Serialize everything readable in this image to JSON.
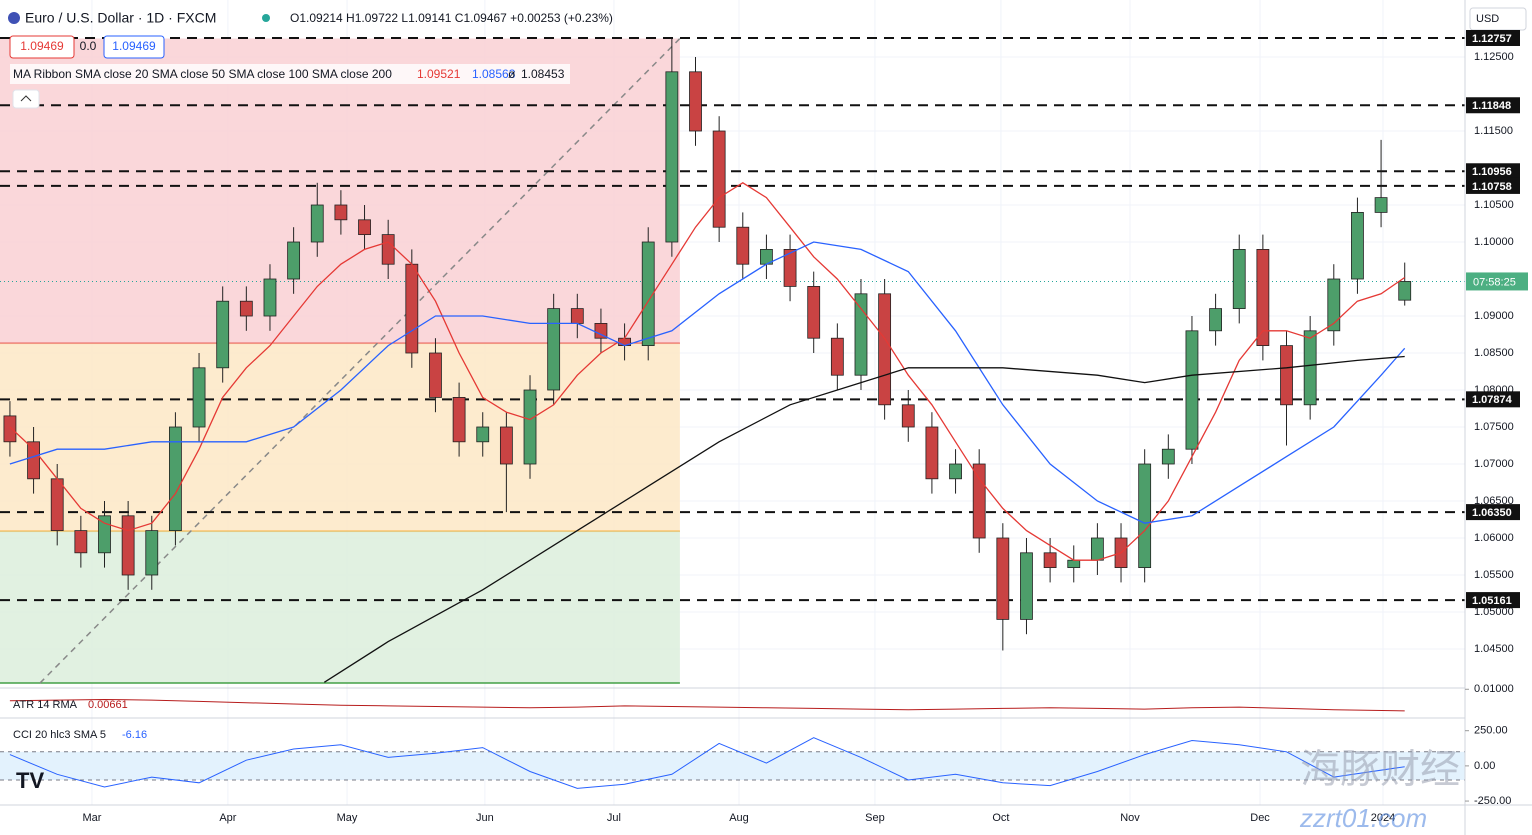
{
  "header": {
    "symbol": "Euro / U.S. Dollar · 1D · FXCM",
    "ohlc": "O1.09214 H1.09722 L1.09141 C1.09467 +0.00253 (+0.23%)",
    "bid": "1.09469",
    "spread": "0.0",
    "ask": "1.09469",
    "currency": "USD",
    "watermark": "海豚财经",
    "watermark_url": "zzrt01.com"
  },
  "chart_data": [
    {
      "type": "candlestick",
      "legend": "MA Ribbon SMA close 20 SMA close 50 SMA close 100 SMA close 200",
      "legend_hidden": "ø",
      "x": [
        0,
        1,
        2,
        3,
        4,
        5,
        6,
        7,
        8,
        9,
        10,
        11,
        12,
        13,
        14,
        15,
        16,
        17,
        18,
        19,
        20,
        21,
        22,
        23,
        24,
        25,
        26,
        27,
        28,
        29,
        30,
        31,
        32,
        33,
        34,
        35,
        36,
        37,
        38,
        39,
        40,
        41,
        42,
        43,
        44,
        45,
        46,
        47,
        48,
        49,
        50,
        51,
        52,
        53,
        54,
        55,
        56,
        57,
        58,
        59
      ],
      "open": [
        1.0765,
        1.073,
        1.068,
        1.061,
        1.058,
        1.063,
        1.055,
        1.061,
        1.075,
        1.083,
        1.092,
        1.09,
        1.095,
        1.1,
        1.105,
        1.103,
        1.101,
        1.097,
        1.085,
        1.079,
        1.073,
        1.075,
        1.07,
        1.08,
        1.091,
        1.089,
        1.087,
        1.086,
        1.1,
        1.123,
        1.115,
        1.102,
        1.097,
        1.099,
        1.094,
        1.087,
        1.082,
        1.093,
        1.078,
        1.075,
        1.068,
        1.07,
        1.06,
        1.049,
        1.058,
        1.056,
        1.057,
        1.06,
        1.056,
        1.07,
        1.072,
        1.088,
        1.091,
        1.099,
        1.086,
        1.078,
        1.088,
        1.095,
        1.104,
        1.09214
      ],
      "high": [
        1.0785,
        1.075,
        1.07,
        1.063,
        1.065,
        1.065,
        1.063,
        1.077,
        1.085,
        1.094,
        1.094,
        1.097,
        1.102,
        1.108,
        1.107,
        1.105,
        1.103,
        1.099,
        1.087,
        1.081,
        1.077,
        1.077,
        1.082,
        1.093,
        1.093,
        1.091,
        1.089,
        1.102,
        1.1275,
        1.125,
        1.117,
        1.104,
        1.101,
        1.101,
        1.096,
        1.089,
        1.095,
        1.095,
        1.08,
        1.077,
        1.072,
        1.072,
        1.062,
        1.06,
        1.06,
        1.059,
        1.062,
        1.062,
        1.072,
        1.074,
        1.09,
        1.093,
        1.101,
        1.101,
        1.088,
        1.09,
        1.097,
        1.106,
        1.1138,
        1.09722
      ],
      "low": [
        1.071,
        1.066,
        1.059,
        1.056,
        1.056,
        1.053,
        1.053,
        1.059,
        1.073,
        1.081,
        1.088,
        1.088,
        1.093,
        1.098,
        1.101,
        1.099,
        1.095,
        1.083,
        1.077,
        1.071,
        1.071,
        1.0635,
        1.068,
        1.078,
        1.087,
        1.085,
        1.084,
        1.084,
        1.098,
        1.113,
        1.1,
        1.095,
        1.095,
        1.092,
        1.085,
        1.08,
        1.08,
        1.076,
        1.073,
        1.066,
        1.066,
        1.058,
        1.0448,
        1.047,
        1.054,
        1.054,
        1.055,
        1.054,
        1.054,
        1.068,
        1.07,
        1.086,
        1.089,
        1.084,
        1.0725,
        1.076,
        1.086,
        1.093,
        1.102,
        1.09141
      ],
      "close": [
        1.073,
        1.068,
        1.061,
        1.058,
        1.063,
        1.055,
        1.061,
        1.075,
        1.083,
        1.092,
        1.09,
        1.095,
        1.1,
        1.105,
        1.103,
        1.101,
        1.097,
        1.085,
        1.079,
        1.073,
        1.075,
        1.07,
        1.08,
        1.091,
        1.089,
        1.087,
        1.086,
        1.1,
        1.123,
        1.115,
        1.102,
        1.097,
        1.099,
        1.094,
        1.087,
        1.082,
        1.093,
        1.078,
        1.075,
        1.068,
        1.07,
        1.06,
        1.049,
        1.058,
        1.056,
        1.057,
        1.06,
        1.056,
        1.07,
        1.072,
        1.088,
        1.091,
        1.099,
        1.086,
        1.078,
        1.088,
        1.095,
        1.104,
        1.106,
        1.09467
      ],
      "up_color": "#4d9e6a",
      "down_color": "#c94343",
      "xlim": [
        -0.42,
        61.55
      ],
      "xticks": [
        {
          "value": 3.47,
          "label": "Mar"
        },
        {
          "value": 9.22,
          "label": "Apr"
        },
        {
          "value": 14.26,
          "label": "May"
        },
        {
          "value": 20.09,
          "label": "Jun"
        },
        {
          "value": 25.55,
          "label": "Jul"
        },
        {
          "value": 30.84,
          "label": "Aug"
        },
        {
          "value": 36.59,
          "label": "Sep"
        },
        {
          "value": 41.92,
          "label": "Oct"
        },
        {
          "value": 47.38,
          "label": "Nov"
        },
        {
          "value": 52.88,
          "label": "Dec"
        },
        {
          "value": 58.08,
          "label": "2024"
        }
      ],
      "ylim": [
        1.03973,
        1.12865
      ],
      "yticks": [
        {
          "value": 1.125,
          "label": "1.12500"
        },
        {
          "value": 1.115,
          "label": "1.11500"
        },
        {
          "value": 1.105,
          "label": "1.10500"
        },
        {
          "value": 1.1,
          "label": "1.10000"
        },
        {
          "value": 1.09,
          "label": "1.09000"
        },
        {
          "value": 1.085,
          "label": "1.08500"
        },
        {
          "value": 1.08,
          "label": "1.08000"
        },
        {
          "value": 1.075,
          "label": "1.07500"
        },
        {
          "value": 1.07,
          "label": "1.07000"
        },
        {
          "value": 1.065,
          "label": "1.06500"
        },
        {
          "value": 1.06,
          "label": "1.06000"
        },
        {
          "value": 1.055,
          "label": "1.05500"
        },
        {
          "value": 1.05,
          "label": "1.05000"
        },
        {
          "value": 1.045,
          "label": "1.04500"
        }
      ],
      "grid": true,
      "zones": [
        {
          "low": 1.0863,
          "high": 1.1275,
          "fill": "#f9d0d3",
          "line": "#e53935"
        },
        {
          "low": 1.0609,
          "high": 1.0863,
          "fill": "#fde7c6",
          "line": "#f39c12"
        },
        {
          "low": 1.0404,
          "high": 1.0609,
          "fill": "#dcefdc",
          "line": "#43a047"
        }
      ],
      "zone_x_end": 28.34,
      "trendline": {
        "x": [
          1.27,
          28.34
        ],
        "values": [
          1.0404,
          1.1275
        ],
        "color": "#888888"
      },
      "levels": [
        1.12757,
        1.11848,
        1.10956,
        1.10758,
        1.07874,
        {
          "value": 1.0635,
          "label": "1.06350"
        },
        1.05161
      ],
      "last_price": 1.09467,
      "countdown": "07:58:25",
      "series": [
        {
          "color": "#e53935",
          "last": 1.09521,
          "x": [
            0,
            1,
            2,
            3,
            4,
            5,
            6,
            7,
            8,
            9,
            10,
            11,
            12,
            13,
            14,
            15,
            16,
            17,
            18,
            19,
            20,
            21,
            22,
            23,
            24,
            25,
            26,
            27,
            28,
            29,
            30,
            31,
            32,
            33,
            34,
            35,
            36,
            37,
            38,
            39,
            40,
            41,
            42,
            43,
            44,
            45,
            46,
            47,
            48,
            49,
            50,
            51,
            52,
            53,
            54,
            55,
            56,
            57,
            58,
            59
          ],
          "values": [
            1.075,
            1.072,
            1.068,
            1.064,
            1.062,
            1.061,
            1.062,
            1.066,
            1.072,
            1.079,
            1.083,
            1.086,
            1.09,
            1.094,
            1.097,
            1.099,
            1.1,
            1.097,
            1.092,
            1.085,
            1.079,
            1.077,
            1.076,
            1.078,
            1.082,
            1.085,
            1.087,
            1.092,
            1.097,
            1.102,
            1.106,
            1.108,
            1.106,
            1.102,
            1.098,
            1.095,
            1.091,
            1.087,
            1.082,
            1.078,
            1.073,
            1.068,
            1.064,
            1.061,
            1.059,
            1.057,
            1.057,
            1.058,
            1.061,
            1.065,
            1.071,
            1.077,
            1.084,
            1.088,
            1.088,
            1.087,
            1.089,
            1.092,
            1.093,
            1.09521
          ]
        },
        {
          "color": "#2962ff",
          "last": 1.08563,
          "x": [
            0,
            2,
            4,
            6,
            8,
            10,
            12,
            14,
            16,
            18,
            20,
            22,
            24,
            26,
            28,
            30,
            32,
            34,
            36,
            38,
            40,
            42,
            44,
            46,
            48,
            50,
            52,
            54,
            56,
            58,
            59
          ],
          "values": [
            1.07,
            1.072,
            1.072,
            1.073,
            1.073,
            1.073,
            1.075,
            1.08,
            1.086,
            1.09,
            1.09,
            1.089,
            1.089,
            1.086,
            1.088,
            1.093,
            1.097,
            1.1,
            1.099,
            1.096,
            1.088,
            1.078,
            1.07,
            1.065,
            1.062,
            1.063,
            1.067,
            1.071,
            1.075,
            1.082,
            1.08563
          ]
        },
        {
          "color": "#111111",
          "last": 1.08453,
          "x": [
            13.3,
            16,
            20,
            24,
            27,
            30,
            33,
            36,
            38,
            42,
            46,
            48,
            50,
            54,
            57,
            59
          ],
          "values": [
            1.0405,
            1.046,
            1.053,
            1.061,
            1.067,
            1.073,
            1.078,
            1.081,
            1.083,
            1.083,
            1.082,
            1.081,
            1.082,
            1.083,
            1.084,
            1.08453
          ]
        }
      ]
    },
    {
      "type": "line",
      "label": "ATR 14 RMA",
      "last": 0.00661,
      "color": "#b71c1c",
      "ylim": [
        0.0055,
        0.0102
      ],
      "yticks": [
        {
          "value": 0.01,
          "label": "0.01000"
        }
      ],
      "x": [
        0,
        2,
        4,
        6,
        8,
        10,
        12,
        14,
        16,
        18,
        20,
        22,
        24,
        26,
        28,
        30,
        32,
        34,
        36,
        38,
        40,
        42,
        44,
        46,
        48,
        50,
        52,
        54,
        56,
        59
      ],
      "values": [
        0.0082,
        0.0083,
        0.0084,
        0.0083,
        0.0081,
        0.0079,
        0.0077,
        0.0075,
        0.0074,
        0.0073,
        0.0072,
        0.0071,
        0.0072,
        0.0074,
        0.0073,
        0.0072,
        0.0071,
        0.007,
        0.0069,
        0.0068,
        0.0069,
        0.007,
        0.0071,
        0.007,
        0.0069,
        0.0071,
        0.0072,
        0.007,
        0.0068,
        0.00661
      ]
    },
    {
      "type": "line",
      "label": "CCI 20 hlc3 SMA 5",
      "last": -6.16,
      "color": "#2962ff",
      "ylim": [
        -278,
        326
      ],
      "band": [
        -100,
        100
      ],
      "yticks": [
        {
          "value": 250,
          "label": "250.00"
        },
        {
          "value": 0,
          "label": "0.00"
        },
        {
          "value": -250,
          "label": "-250.00"
        }
      ],
      "x": [
        0,
        2,
        4,
        6,
        8,
        10,
        12,
        14,
        16,
        18,
        20,
        22,
        24,
        26,
        28,
        30,
        32,
        34,
        36,
        38,
        40,
        42,
        44,
        46,
        48,
        50,
        52,
        54,
        56,
        59
      ],
      "values": [
        80,
        -60,
        -150,
        -80,
        -120,
        40,
        120,
        150,
        60,
        90,
        130,
        -40,
        -160,
        -130,
        -60,
        160,
        20,
        200,
        60,
        -100,
        -60,
        -120,
        -140,
        -40,
        80,
        180,
        150,
        100,
        -80,
        -6.16
      ]
    }
  ]
}
